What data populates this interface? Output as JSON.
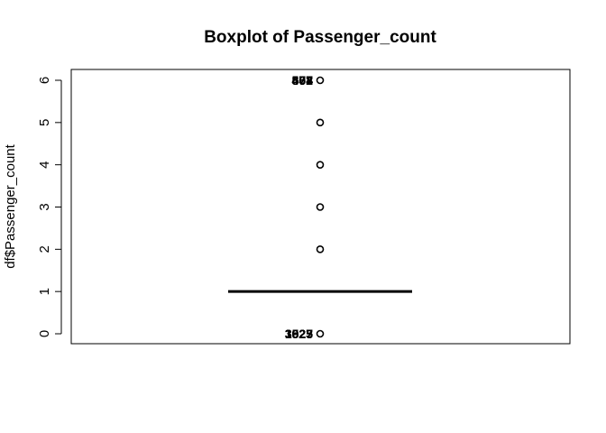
{
  "chart_data": {
    "type": "boxplot",
    "title": "Boxplot of Passenger_count",
    "xlabel": "",
    "ylabel": "df$Passenger_count",
    "ylim": [
      0,
      6
    ],
    "yticks": [
      0,
      1,
      2,
      3,
      4,
      5,
      6
    ],
    "grid": false,
    "box": {
      "min": 1,
      "q1": 1,
      "median": 1,
      "q3": 1,
      "max": 1
    },
    "outliers": [
      0,
      2,
      3,
      4,
      5,
      6
    ],
    "outlier_labels": [
      {
        "y": 6,
        "texts": [
          "802",
          "477",
          "463",
          "508",
          "464",
          "507",
          "303"
        ]
      },
      {
        "y": 0,
        "texts": [
          "3525",
          "1027",
          "3623",
          "3925",
          "3023"
        ]
      }
    ]
  }
}
